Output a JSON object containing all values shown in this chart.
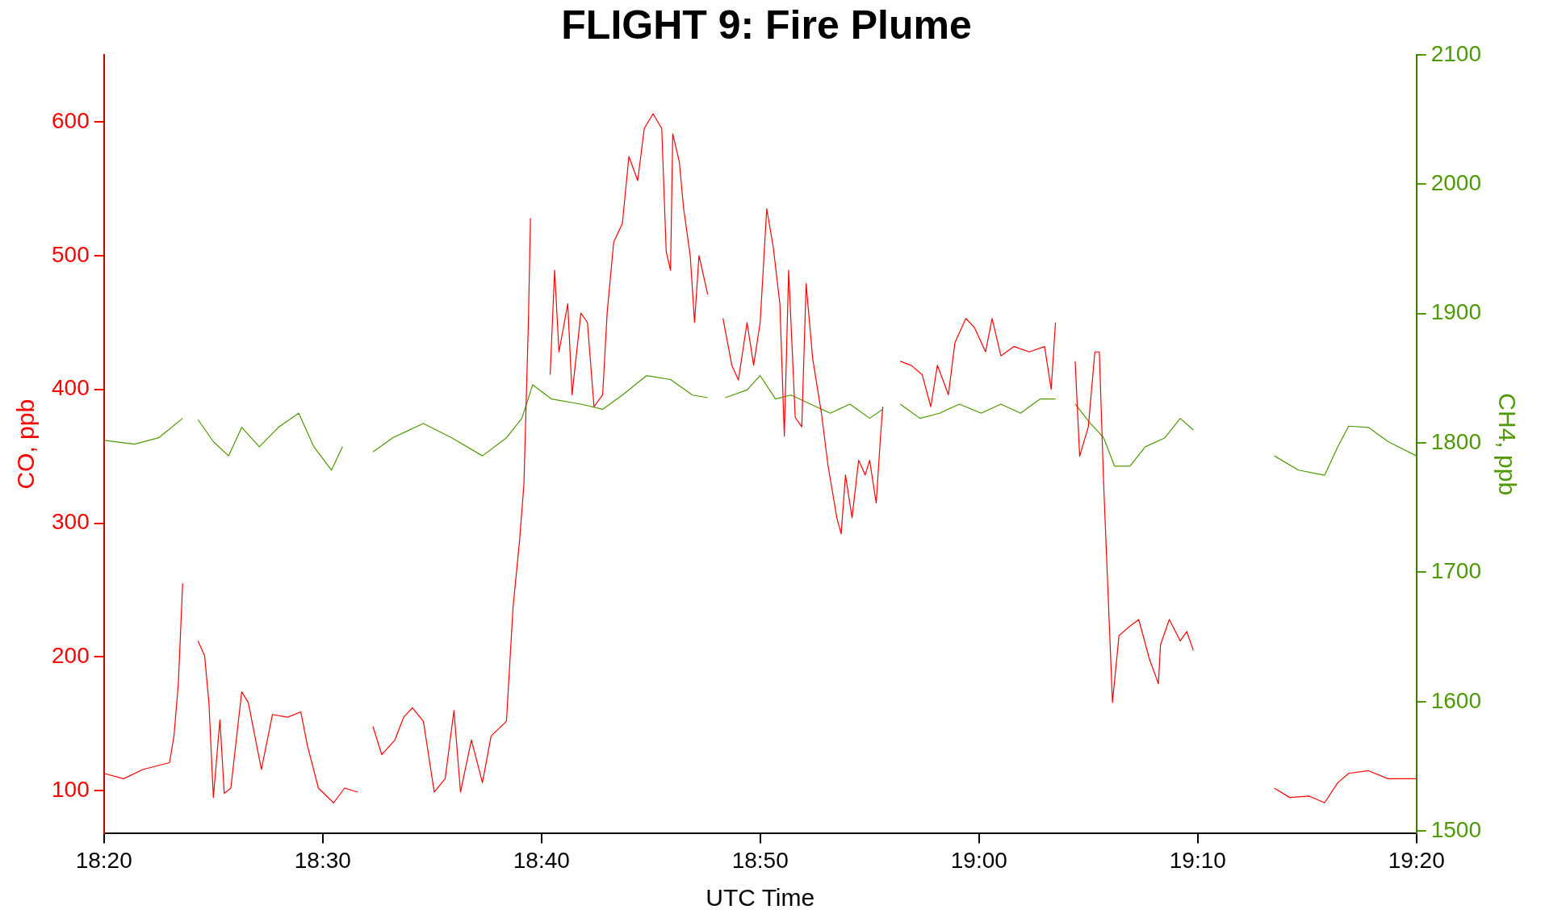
{
  "chart_data": {
    "type": "line",
    "title": "FLIGHT 9: Fire Plume",
    "xlabel": "UTC Time",
    "ylabel": "CO, ppb",
    "y2label": "CH4, ppb",
    "xlim": [
      18.3333,
      19.3333
    ],
    "xticks": [
      {
        "value": 18.3333,
        "label": "18:20"
      },
      {
        "value": 18.5,
        "label": "18:30"
      },
      {
        "value": 18.6667,
        "label": "18:40"
      },
      {
        "value": 18.8333,
        "label": "18:50"
      },
      {
        "value": 19,
        "label": "19:00"
      },
      {
        "value": 19.1667,
        "label": "19:10"
      },
      {
        "value": 19.3333,
        "label": "19:20"
      }
    ],
    "ylim": [
      68,
      650
    ],
    "yticks": [
      100,
      200,
      300,
      400,
      500,
      600
    ],
    "y2lim": [
      1498,
      2100
    ],
    "y2ticks": [
      1500,
      1600,
      1700,
      1800,
      1900,
      2000,
      2100
    ],
    "grid": false,
    "legend": false,
    "line_style": "solid",
    "series": [
      {
        "color": "#ff0000",
        "x": [
          18.3333,
          18.3483,
          18.3633,
          18.3833,
          18.3867,
          18.39,
          18.3933,
          18.3983,
          18.405,
          18.41,
          18.4133,
          18.4167,
          18.4217,
          18.425,
          18.43,
          18.4383,
          18.4433,
          18.4533,
          18.4617,
          18.4733,
          18.4833,
          18.4883,
          18.4967,
          18.5083,
          18.5167,
          18.5267,
          18.5333,
          18.5383,
          18.545,
          18.555,
          18.5617,
          18.5683,
          18.5767,
          18.585,
          18.5933,
          18.6,
          18.605,
          18.6133,
          18.6217,
          18.6283,
          18.64,
          18.645,
          18.65,
          18.6533,
          18.6567,
          18.6583,
          18.6667,
          18.6733,
          18.6767,
          18.68,
          18.6867,
          18.69,
          18.6967,
          18.7017,
          18.7067,
          18.7133,
          18.7167,
          18.7217,
          18.7283,
          18.7333,
          18.74,
          18.745,
          18.7517,
          18.7583,
          18.7617,
          18.765,
          18.7667,
          18.7717,
          18.775,
          18.78,
          18.7833,
          18.7867,
          18.7933,
          18.8,
          18.805,
          18.8117,
          18.8167,
          18.8233,
          18.8283,
          18.8333,
          18.8383,
          18.8433,
          18.8483,
          18.8517,
          18.855,
          18.86,
          18.865,
          18.8683,
          18.8733,
          18.88,
          18.885,
          18.8917,
          18.895,
          18.8983,
          18.9033,
          18.9083,
          18.9133,
          18.9167,
          18.9217,
          18.925,
          18.9267,
          18.9333,
          18.94,
          18.9483,
          18.9567,
          18.9633,
          18.9683,
          18.9767,
          18.9817,
          18.99,
          18.9967,
          19.005,
          19.01,
          19.0167,
          19.0267,
          19.0383,
          19.05,
          19.055,
          19.0583,
          19.0667,
          19.0733,
          19.0767,
          19.0833,
          19.0883,
          19.0917,
          19.095,
          19.1017,
          19.1067,
          19.115,
          19.1217,
          19.13,
          19.1367,
          19.1383,
          19.145,
          19.1533,
          19.1583,
          19.1633,
          19.1833,
          19.225,
          19.2367,
          19.2517,
          19.2633,
          19.2733,
          19.2817,
          19.2967,
          19.3117,
          19.3333
        ],
        "values": [
          113,
          109,
          116,
          121,
          141,
          180,
          255,
          null,
          212,
          201,
          166,
          95,
          153,
          98,
          102,
          174,
          166,
          116,
          157,
          155,
          159,
          134,
          102,
          91,
          102,
          99,
          null,
          148,
          127,
          138,
          155,
          162,
          152,
          99,
          109,
          160,
          99,
          138,
          106,
          141,
          152,
          237,
          287,
          329,
          450,
          528,
          null,
          411,
          489,
          428,
          464,
          396,
          457,
          450,
          387,
          396,
          457,
          510,
          524,
          574,
          556,
          595,
          606,
          595,
          503,
          489,
          591,
          570,
          535,
          500,
          450,
          500,
          471,
          null,
          453,
          418,
          407,
          450,
          418,
          450,
          535,
          506,
          464,
          365,
          489,
          379,
          372,
          479,
          423,
          382,
          343,
          304,
          292,
          336,
          304,
          347,
          336,
          347,
          315,
          365,
          387,
          null,
          421,
          418,
          411,
          387,
          418,
          396,
          435,
          453,
          446,
          428,
          453,
          425,
          432,
          428,
          432,
          400,
          450,
          null,
          421,
          350,
          372,
          428,
          428,
          329,
          166,
          216,
          223,
          228,
          198,
          180,
          209,
          228,
          212,
          219,
          205,
          null,
          102,
          95,
          96,
          91,
          106,
          113,
          115,
          109,
          109
        ]
      },
      {
        "color": "#4d9900",
        "axis": "y2",
        "x": [
          18.3333,
          18.3567,
          18.375,
          18.3933,
          18.3983,
          18.405,
          18.4167,
          18.4283,
          18.4383,
          18.4517,
          18.4662,
          18.4817,
          18.4933,
          18.5067,
          18.515,
          18.5333,
          18.5383,
          18.5533,
          18.5767,
          18.5983,
          18.6217,
          18.64,
          18.6517,
          18.66,
          18.6742,
          18.6967,
          18.7133,
          18.7283,
          18.7467,
          18.765,
          18.7817,
          18.7933,
          18.8,
          18.8067,
          18.8233,
          18.8333,
          18.845,
          18.8567,
          18.8717,
          18.8867,
          18.9017,
          18.9167,
          18.9267,
          18.9333,
          18.94,
          18.955,
          18.97,
          18.985,
          19.0017,
          19.0167,
          19.0317,
          19.0467,
          19.0583,
          19.0667,
          19.0733,
          19.085,
          19.095,
          19.1033,
          19.115,
          19.1267,
          19.1417,
          19.1533,
          19.1633,
          19.1833,
          19.225,
          19.2433,
          19.2633,
          19.2733,
          19.2817,
          19.2967,
          19.3117,
          19.3333
        ],
        "values": [
          1802,
          1799,
          1804,
          1819,
          null,
          1818,
          1801,
          1790,
          1812,
          1797,
          1812,
          1823,
          1797,
          1779,
          1797,
          null,
          1793,
          1804,
          1815,
          1804,
          1790,
          1804,
          1819,
          1845,
          1834,
          1830,
          1826,
          1837,
          1852,
          1849,
          1837,
          1835,
          null,
          1835,
          1841,
          1852,
          1834,
          1837,
          1830,
          1823,
          1830,
          1819,
          1826,
          null,
          1830,
          1819,
          1823,
          1830,
          1823,
          1830,
          1823,
          1834,
          1834,
          null,
          1830,
          1815,
          1804,
          1782,
          1782,
          1797,
          1804,
          1819,
          1810,
          null,
          1790,
          1779,
          1775,
          1797,
          1813,
          1812,
          1801,
          1790
        ]
      }
    ]
  }
}
